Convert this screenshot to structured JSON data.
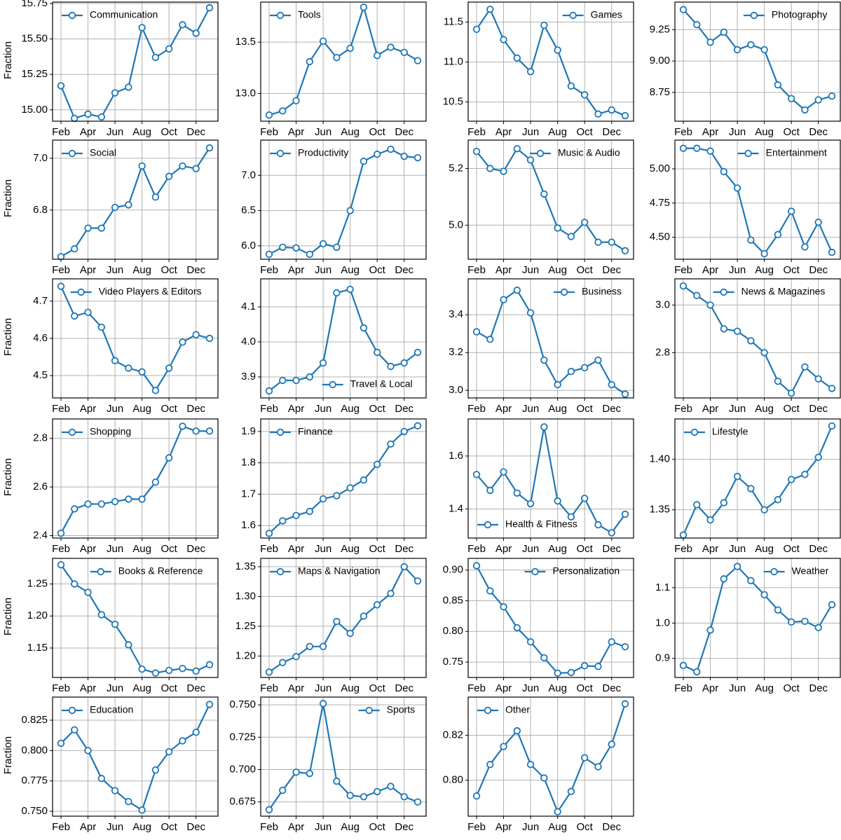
{
  "chart_data": [
    {
      "type": "line",
      "categories": [
        "Feb",
        null,
        "Apr",
        null,
        "Jun",
        null,
        "Aug",
        null,
        "Oct",
        null,
        "Dec",
        null
      ],
      "ylabel": "Fraction",
      "legend": "upper left",
      "grid": true,
      "series": [
        {
          "name": "Communication",
          "color": "#1f77b4",
          "values": [
            15.17,
            14.94,
            14.97,
            14.95,
            15.12,
            15.16,
            15.58,
            15.37,
            15.43,
            15.6,
            15.54,
            15.72
          ]
        }
      ],
      "ylim": [
        14.92,
        15.76
      ],
      "yticks": [
        {
          "value": 15,
          "label": "15.00"
        },
        15.25,
        {
          "value": 15.5,
          "label": "15.50"
        },
        15.75
      ]
    },
    {
      "type": "line",
      "categories": [
        "Feb",
        null,
        "Apr",
        null,
        "Jun",
        null,
        "Aug",
        null,
        "Oct",
        null,
        "Dec",
        null
      ],
      "legend": "upper left",
      "grid": true,
      "series": [
        {
          "name": "Tools",
          "color": "#1f77b4",
          "values": [
            12.79,
            12.83,
            12.93,
            13.31,
            13.51,
            13.35,
            13.44,
            13.84,
            13.37,
            13.45,
            13.4,
            13.32
          ]
        }
      ],
      "ylim": [
        12.73,
        13.89
      ],
      "yticks": [
        {
          "value": 13,
          "label": "13.0"
        },
        13.5
      ]
    },
    {
      "type": "line",
      "categories": [
        "Feb",
        null,
        "Apr",
        null,
        "Jun",
        null,
        "Aug",
        null,
        "Oct",
        null,
        "Dec",
        null
      ],
      "legend": "upper right",
      "grid": true,
      "series": [
        {
          "name": "Games",
          "color": "#1f77b4",
          "values": [
            11.41,
            11.66,
            11.28,
            11.05,
            10.88,
            11.46,
            11.15,
            10.7,
            10.59,
            10.35,
            10.4,
            10.33
          ]
        }
      ],
      "ylim": [
        10.26,
        11.75
      ],
      "yticks": [
        10.5,
        {
          "value": 11,
          "label": "11.0"
        },
        11.5
      ]
    },
    {
      "type": "line",
      "categories": [
        "Feb",
        null,
        "Apr",
        null,
        "Jun",
        null,
        "Aug",
        null,
        "Oct",
        null,
        "Dec",
        null
      ],
      "legend": "upper right",
      "grid": true,
      "series": [
        {
          "name": "Photography",
          "color": "#1f77b4",
          "values": [
            9.41,
            9.29,
            9.15,
            9.23,
            9.09,
            9.13,
            9.09,
            8.81,
            8.7,
            8.61,
            8.69,
            8.72
          ]
        }
      ],
      "ylim": [
        8.52,
        9.47
      ],
      "yticks": [
        8.75,
        {
          "value": 9,
          "label": "9.00"
        },
        9.25
      ]
    },
    {
      "type": "line",
      "categories": [
        "Feb",
        null,
        "Apr",
        null,
        "Jun",
        null,
        "Aug",
        null,
        "Oct",
        null,
        "Dec",
        null
      ],
      "ylabel": "Fraction",
      "legend": "upper left",
      "grid": true,
      "series": [
        {
          "name": "Social",
          "color": "#1f77b4",
          "values": [
            6.62,
            6.65,
            6.73,
            6.73,
            6.81,
            6.82,
            6.97,
            6.85,
            6.93,
            6.97,
            6.96,
            7.04
          ]
        }
      ],
      "ylim": [
        6.61,
        7.07
      ],
      "yticks": [
        6.8,
        {
          "value": 7,
          "label": "7.0"
        }
      ]
    },
    {
      "type": "line",
      "categories": [
        "Feb",
        null,
        "Apr",
        null,
        "Jun",
        null,
        "Aug",
        null,
        "Oct",
        null,
        "Dec",
        null
      ],
      "legend": "upper left",
      "grid": true,
      "series": [
        {
          "name": "Productivity",
          "color": "#1f77b4",
          "values": [
            5.88,
            5.98,
            5.97,
            5.88,
            6.03,
            5.98,
            6.5,
            7.2,
            7.3,
            7.37,
            7.27,
            7.25
          ]
        }
      ],
      "ylim": [
        5.81,
        7.5
      ],
      "yticks": [
        {
          "value": 6,
          "label": "6.0"
        },
        6.5,
        {
          "value": 7,
          "label": "7.0"
        }
      ]
    },
    {
      "type": "line",
      "categories": [
        "Feb",
        null,
        "Apr",
        null,
        "Jun",
        null,
        "Aug",
        null,
        "Oct",
        null,
        "Dec",
        null
      ],
      "legend": "upper right",
      "grid": true,
      "series": [
        {
          "name": "Music & Audio",
          "color": "#1f77b4",
          "values": [
            5.26,
            5.2,
            5.19,
            5.27,
            5.23,
            5.11,
            4.99,
            4.96,
            5.01,
            4.94,
            4.94,
            4.91
          ]
        }
      ],
      "ylim": [
        4.88,
        5.3
      ],
      "yticks": [
        {
          "value": 5,
          "label": "5.0"
        },
        5.2
      ]
    },
    {
      "type": "line",
      "categories": [
        "Feb",
        null,
        "Apr",
        null,
        "Jun",
        null,
        "Aug",
        null,
        "Oct",
        null,
        "Dec",
        null
      ],
      "legend": "upper right",
      "grid": true,
      "series": [
        {
          "name": "Entertainment",
          "color": "#1f77b4",
          "values": [
            5.15,
            5.15,
            5.13,
            4.98,
            4.86,
            4.48,
            4.38,
            4.52,
            4.69,
            4.43,
            4.61,
            4.39
          ]
        }
      ],
      "ylim": [
        4.34,
        5.21
      ],
      "yticks": [
        {
          "value": 4.5,
          "label": "4.50"
        },
        4.75,
        {
          "value": 5,
          "label": "5.00"
        }
      ]
    },
    {
      "type": "line",
      "categories": [
        "Feb",
        null,
        "Apr",
        null,
        "Jun",
        null,
        "Aug",
        null,
        "Oct",
        null,
        "Dec",
        null
      ],
      "ylabel": "Fraction",
      "legend": "upper right",
      "grid": true,
      "series": [
        {
          "name": "Video Players & Editors",
          "color": "#1f77b4",
          "values": [
            4.74,
            4.66,
            4.67,
            4.63,
            4.54,
            4.52,
            4.51,
            4.46,
            4.52,
            4.59,
            4.61,
            4.6
          ]
        }
      ],
      "ylim": [
        4.44,
        4.76
      ],
      "yticks": [
        4.5,
        4.6,
        4.7
      ]
    },
    {
      "type": "line",
      "categories": [
        "Feb",
        null,
        "Apr",
        null,
        "Jun",
        null,
        "Aug",
        null,
        "Oct",
        null,
        "Dec",
        null
      ],
      "legend": "lower right",
      "grid": true,
      "series": [
        {
          "name": "Travel & Local",
          "color": "#1f77b4",
          "values": [
            3.86,
            3.89,
            3.89,
            3.9,
            3.94,
            4.14,
            4.15,
            4.04,
            3.97,
            3.93,
            3.94,
            3.97
          ]
        }
      ],
      "ylim": [
        3.84,
        4.18
      ],
      "yticks": [
        3.9,
        {
          "value": 4,
          "label": "4.0"
        },
        4.1
      ]
    },
    {
      "type": "line",
      "categories": [
        "Feb",
        null,
        "Apr",
        null,
        "Jun",
        null,
        "Aug",
        null,
        "Oct",
        null,
        "Dec",
        null
      ],
      "legend": "upper right",
      "grid": true,
      "series": [
        {
          "name": "Business",
          "color": "#1f77b4",
          "values": [
            3.31,
            3.27,
            3.48,
            3.53,
            3.41,
            3.16,
            3.03,
            3.1,
            3.12,
            3.16,
            3.03,
            2.98
          ]
        }
      ],
      "ylim": [
        2.96,
        3.59
      ],
      "yticks": [
        {
          "value": 3,
          "label": "3.0"
        },
        3.2,
        3.4
      ]
    },
    {
      "type": "line",
      "categories": [
        "Feb",
        null,
        "Apr",
        null,
        "Jun",
        null,
        "Aug",
        null,
        "Oct",
        null,
        "Dec",
        null
      ],
      "legend": "upper right",
      "grid": true,
      "series": [
        {
          "name": "News & Magazines",
          "color": "#1f77b4",
          "values": [
            3.08,
            3.04,
            3.0,
            2.9,
            2.89,
            2.85,
            2.8,
            2.68,
            2.63,
            2.74,
            2.69,
            2.65
          ]
        }
      ],
      "ylim": [
        2.61,
        3.11
      ],
      "yticks": [
        2.8,
        {
          "value": 3,
          "label": "3.0"
        }
      ]
    },
    {
      "type": "line",
      "categories": [
        "Feb",
        null,
        "Apr",
        null,
        "Jun",
        null,
        "Aug",
        null,
        "Oct",
        null,
        "Dec",
        null
      ],
      "ylabel": "Fraction",
      "legend": "upper left",
      "grid": true,
      "series": [
        {
          "name": "Shopping",
          "color": "#1f77b4",
          "values": [
            2.41,
            2.51,
            2.53,
            2.53,
            2.54,
            2.55,
            2.55,
            2.62,
            2.72,
            2.85,
            2.83,
            2.83
          ]
        }
      ],
      "ylim": [
        2.39,
        2.88
      ],
      "yticks": [
        2.4,
        2.6,
        2.8
      ]
    },
    {
      "type": "line",
      "categories": [
        "Feb",
        null,
        "Apr",
        null,
        "Jun",
        null,
        "Aug",
        null,
        "Oct",
        null,
        "Dec",
        null
      ],
      "legend": "upper left",
      "grid": true,
      "series": [
        {
          "name": "Finance",
          "color": "#1f77b4",
          "values": [
            1.575,
            1.615,
            1.632,
            1.645,
            1.685,
            1.695,
            1.72,
            1.745,
            1.795,
            1.86,
            1.9,
            1.918
          ]
        }
      ],
      "ylim": [
        1.56,
        1.94
      ],
      "yticks": [
        1.6,
        1.7,
        1.8,
        1.9
      ]
    },
    {
      "type": "line",
      "categories": [
        "Feb",
        null,
        "Apr",
        null,
        "Jun",
        null,
        "Aug",
        null,
        "Oct",
        null,
        "Dec",
        null
      ],
      "legend": "lower left",
      "grid": true,
      "series": [
        {
          "name": "Health & Fitness",
          "color": "#1f77b4",
          "values": [
            1.53,
            1.47,
            1.54,
            1.46,
            1.42,
            1.71,
            1.43,
            1.37,
            1.44,
            1.34,
            1.31,
            1.38
          ]
        }
      ],
      "ylim": [
        1.29,
        1.74
      ],
      "yticks": [
        1.4,
        1.6
      ]
    },
    {
      "type": "line",
      "categories": [
        "Feb",
        null,
        "Apr",
        null,
        "Jun",
        null,
        "Aug",
        null,
        "Oct",
        null,
        "Dec",
        null
      ],
      "legend": "upper left",
      "grid": true,
      "series": [
        {
          "name": "Lifestyle",
          "color": "#1f77b4",
          "values": [
            1.325,
            1.355,
            1.34,
            1.357,
            1.383,
            1.371,
            1.35,
            1.36,
            1.38,
            1.385,
            1.402,
            1.433
          ]
        }
      ],
      "ylim": [
        1.322,
        1.44
      ],
      "yticks": [
        1.35,
        {
          "value": 1.4,
          "label": "1.40"
        }
      ]
    },
    {
      "type": "line",
      "categories": [
        "Feb",
        null,
        "Apr",
        null,
        "Jun",
        null,
        "Aug",
        null,
        "Oct",
        null,
        "Dec",
        null
      ],
      "ylabel": "Fraction",
      "legend": "upper right",
      "grid": true,
      "series": [
        {
          "name": "Books & Reference",
          "color": "#1f77b4",
          "values": [
            1.28,
            1.25,
            1.237,
            1.202,
            1.187,
            1.155,
            1.117,
            1.111,
            1.115,
            1.118,
            1.114,
            1.124
          ]
        }
      ],
      "ylim": [
        1.104,
        1.29
      ],
      "yticks": [
        1.15,
        {
          "value": 1.2,
          "label": "1.20"
        },
        1.25
      ]
    },
    {
      "type": "line",
      "categories": [
        "Feb",
        null,
        "Apr",
        null,
        "Jun",
        null,
        "Aug",
        null,
        "Oct",
        null,
        "Dec",
        null
      ],
      "legend": "upper left",
      "grid": true,
      "series": [
        {
          "name": "Maps & Navigation",
          "color": "#1f77b4",
          "values": [
            1.173,
            1.189,
            1.199,
            1.216,
            1.216,
            1.258,
            1.238,
            1.267,
            1.286,
            1.305,
            1.35,
            1.326
          ]
        }
      ],
      "ylim": [
        1.164,
        1.364
      ],
      "yticks": [
        {
          "value": 1.2,
          "label": "1.20"
        },
        1.25,
        {
          "value": 1.3,
          "label": "1.30"
        },
        1.35
      ]
    },
    {
      "type": "line",
      "categories": [
        "Feb",
        null,
        "Apr",
        null,
        "Jun",
        null,
        "Aug",
        null,
        "Oct",
        null,
        "Dec",
        null
      ],
      "legend": "upper right",
      "grid": true,
      "series": [
        {
          "name": "Personalization",
          "color": "#1f77b4",
          "values": [
            0.907,
            0.866,
            0.84,
            0.806,
            0.783,
            0.757,
            0.732,
            0.733,
            0.744,
            0.743,
            0.783,
            0.775
          ]
        }
      ],
      "ylim": [
        0.725,
        0.919
      ],
      "yticks": [
        0.75,
        {
          "value": 0.8,
          "label": "0.80"
        },
        0.85,
        {
          "value": 0.9,
          "label": "0.90"
        }
      ]
    },
    {
      "type": "line",
      "categories": [
        "Feb",
        null,
        "Apr",
        null,
        "Jun",
        null,
        "Aug",
        null,
        "Oct",
        null,
        "Dec",
        null
      ],
      "legend": "upper right",
      "grid": true,
      "series": [
        {
          "name": "Weather",
          "color": "#1f77b4",
          "values": [
            0.88,
            0.862,
            0.98,
            1.125,
            1.16,
            1.12,
            1.08,
            1.037,
            1.003,
            1.005,
            0.987,
            1.052
          ]
        }
      ],
      "ylim": [
        0.846,
        1.183
      ],
      "yticks": [
        0.9,
        {
          "value": 1,
          "label": "1.0"
        },
        1.1
      ]
    },
    {
      "type": "line",
      "categories": [
        "Feb",
        null,
        "Apr",
        null,
        "Jun",
        null,
        "Aug",
        null,
        "Oct",
        null,
        "Dec",
        null
      ],
      "ylabel": "Fraction",
      "legend": "upper left",
      "grid": true,
      "series": [
        {
          "name": "Education",
          "color": "#1f77b4",
          "values": [
            0.806,
            0.817,
            0.8,
            0.777,
            0.767,
            0.758,
            0.751,
            0.784,
            0.799,
            0.808,
            0.815,
            0.838
          ]
        }
      ],
      "ylim": [
        0.746,
        0.844
      ],
      "yticks": [
        {
          "value": 0.75,
          "label": "0.750"
        },
        0.775,
        {
          "value": 0.8,
          "label": "0.800"
        },
        0.825
      ]
    },
    {
      "type": "line",
      "categories": [
        "Feb",
        null,
        "Apr",
        null,
        "Jun",
        null,
        "Aug",
        null,
        "Oct",
        null,
        "Dec",
        null
      ],
      "legend": "upper right",
      "grid": true,
      "series": [
        {
          "name": "Sports",
          "color": "#1f77b4",
          "values": [
            0.669,
            0.684,
            0.698,
            0.697,
            0.751,
            0.691,
            0.68,
            0.679,
            0.683,
            0.687,
            0.679,
            0.675
          ]
        }
      ],
      "ylim": [
        0.664,
        0.756
      ],
      "yticks": [
        0.675,
        {
          "value": 0.7,
          "label": "0.700"
        },
        0.725,
        {
          "value": 0.75,
          "label": "0.750"
        }
      ]
    },
    {
      "type": "line",
      "categories": [
        "Feb",
        null,
        "Apr",
        null,
        "Jun",
        null,
        "Aug",
        null,
        "Oct",
        null,
        "Dec",
        null
      ],
      "legend": "upper left",
      "grid": true,
      "series": [
        {
          "name": "Other",
          "color": "#1f77b4",
          "values": [
            0.793,
            0.807,
            0.815,
            0.822,
            0.807,
            0.801,
            0.786,
            0.795,
            0.81,
            0.806,
            0.816,
            0.834
          ]
        }
      ],
      "ylim": [
        0.784,
        0.837
      ],
      "yticks": [
        {
          "value": 0.8,
          "label": "0.80"
        },
        0.82
      ]
    }
  ]
}
